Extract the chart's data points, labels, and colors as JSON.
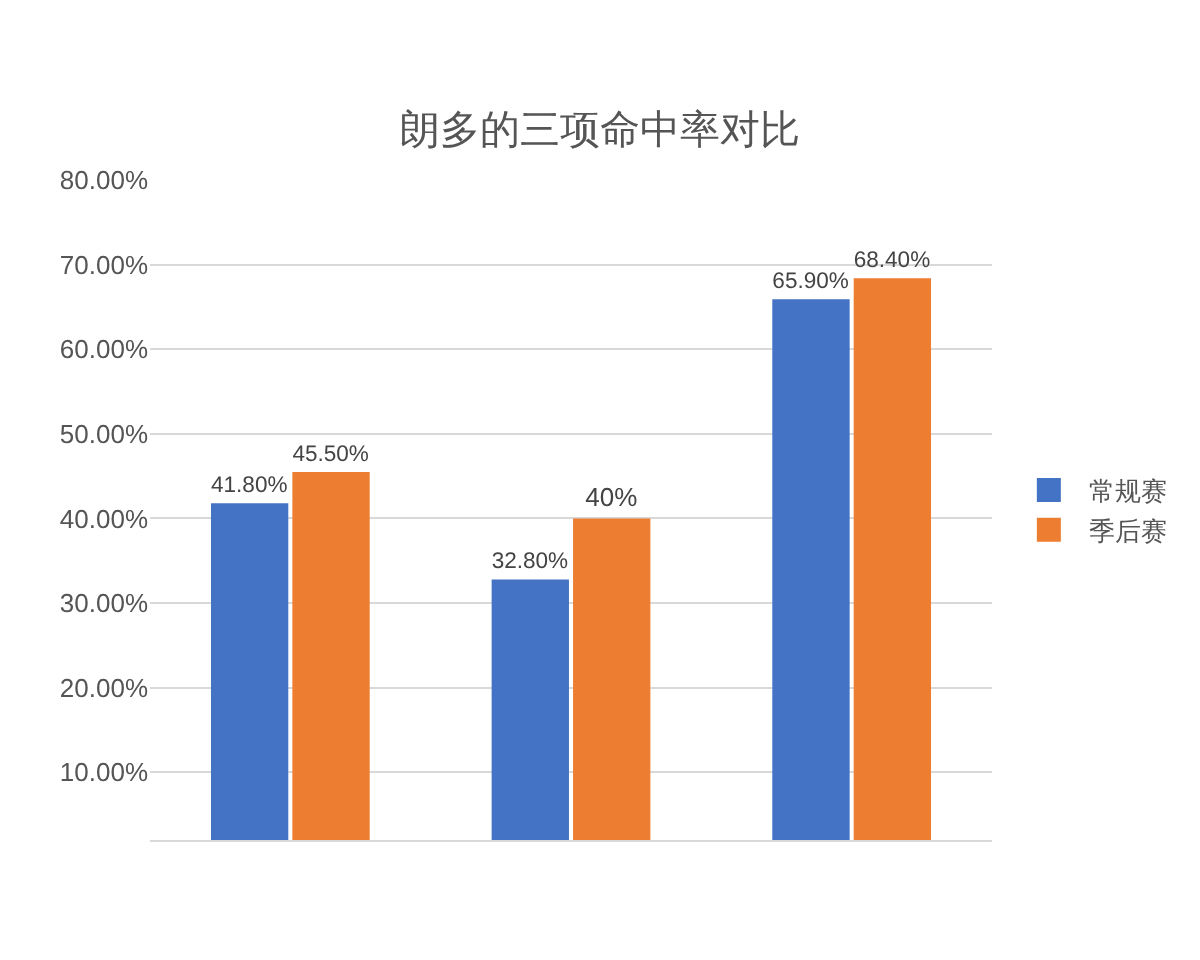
{
  "chart_data": {
    "type": "bar",
    "title": "朗多的三项命中率对比",
    "categories": [
      null,
      null,
      null
    ],
    "series": [
      {
        "name": "常规赛",
        "color": "#4472c4",
        "values": [
          41.8,
          32.8,
          65.9
        ],
        "value_labels": [
          "41.80%",
          "32.80%",
          "65.90%"
        ]
      },
      {
        "name": "季后赛",
        "color": "#ed7d31",
        "values": [
          45.5,
          40,
          68.4
        ],
        "value_labels": [
          "45.50%",
          "40%",
          "68.40%"
        ]
      }
    ],
    "ylim": [
      2,
      80
    ],
    "yticks": [
      {
        "value": 10,
        "label": "10.00%"
      },
      {
        "value": 20,
        "label": "20.00%"
      },
      {
        "value": 30,
        "label": "30.00%"
      },
      {
        "value": 40,
        "label": "40.00%"
      },
      {
        "value": 50,
        "label": "50.00%"
      },
      {
        "value": 60,
        "label": "60.00%"
      },
      {
        "value": 70,
        "label": "70.00%"
      },
      {
        "value": 80,
        "label": "80.00%"
      }
    ],
    "grid": "y",
    "legend": "right",
    "tick_labels": "y"
  }
}
